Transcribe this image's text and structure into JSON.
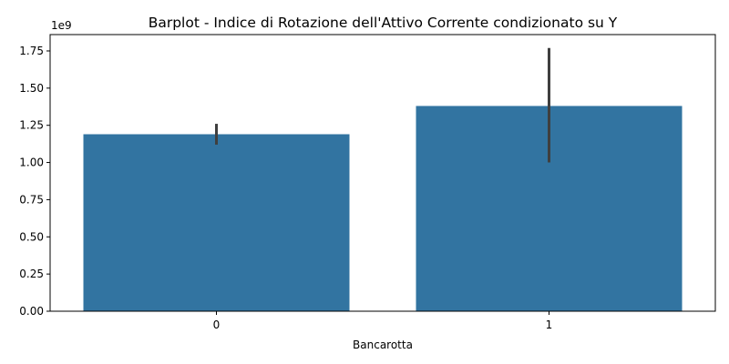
{
  "chart_data": {
    "type": "bar",
    "title": "Barplot - Indice di Rotazione dell'Attivo Corrente condizionato su Y",
    "xlabel": "Bancarotta",
    "ylabel": "",
    "categories": [
      "0",
      "1"
    ],
    "values": [
      1.19,
      1.38
    ],
    "error_bars": [
      {
        "low": 1.12,
        "high": 1.26
      },
      {
        "low": 1.0,
        "high": 1.77
      }
    ],
    "y_scale_multiplier": "1e9",
    "ylim": [
      0,
      1.86
    ],
    "y_ticks": [
      0.0,
      0.25,
      0.5,
      0.75,
      1.0,
      1.25,
      1.5,
      1.75
    ],
    "y_tick_labels": [
      "0.00",
      "0.25",
      "0.50",
      "0.75",
      "1.00",
      "1.25",
      "1.50",
      "1.75"
    ],
    "grid": false,
    "legend": "none",
    "colors": {
      "bar": "#3274a1",
      "error_bar": "#3f3f3f",
      "axis": "#000000"
    }
  }
}
